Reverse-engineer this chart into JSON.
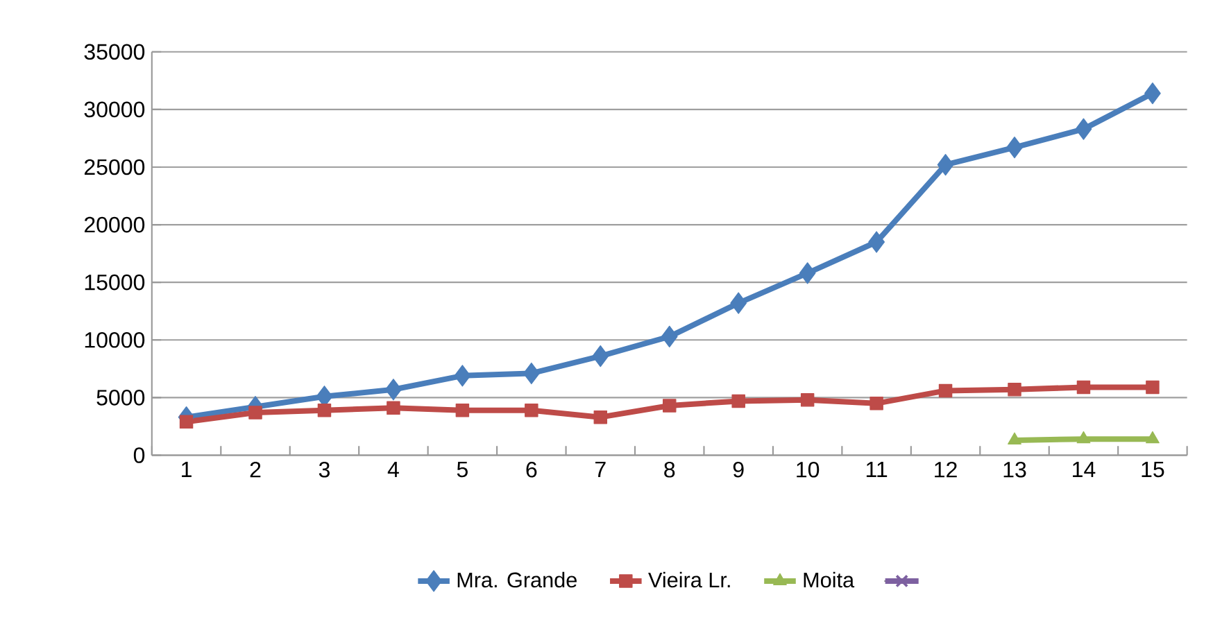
{
  "chart_data": {
    "type": "line",
    "categories": [
      "1",
      "2",
      "3",
      "4",
      "5",
      "6",
      "7",
      "8",
      "9",
      "10",
      "11",
      "12",
      "13",
      "14",
      "15"
    ],
    "series": [
      {
        "name": "Mra. Grande",
        "color": "#4a7ebb",
        "marker": "diamond",
        "values": [
          3300,
          4200,
          5100,
          5700,
          6900,
          7100,
          8600,
          10300,
          13200,
          15800,
          18500,
          25200,
          26700,
          28300,
          31400
        ]
      },
      {
        "name": "Vieira Lr.",
        "color": "#be4b48",
        "marker": "square",
        "values": [
          2900,
          3700,
          3900,
          4100,
          3900,
          3900,
          3300,
          4300,
          4700,
          4800,
          4500,
          5600,
          5700,
          5900,
          5900
        ]
      },
      {
        "name": "Moita",
        "color": "#98b954",
        "marker": "triangle",
        "values": [
          null,
          null,
          null,
          null,
          null,
          null,
          null,
          null,
          null,
          null,
          null,
          null,
          1300,
          1400,
          1400
        ]
      },
      {
        "color": "#7d60a0",
        "marker": "cross",
        "values": [
          null,
          null,
          null,
          null,
          null,
          null,
          null,
          null,
          null,
          null,
          null,
          null,
          null,
          null,
          null
        ]
      }
    ],
    "ylim": [
      0,
      35000
    ],
    "yticks": [
      0,
      5000,
      10000,
      15000,
      20000,
      25000,
      30000,
      35000
    ],
    "grid": "y",
    "legend": "bottom"
  }
}
